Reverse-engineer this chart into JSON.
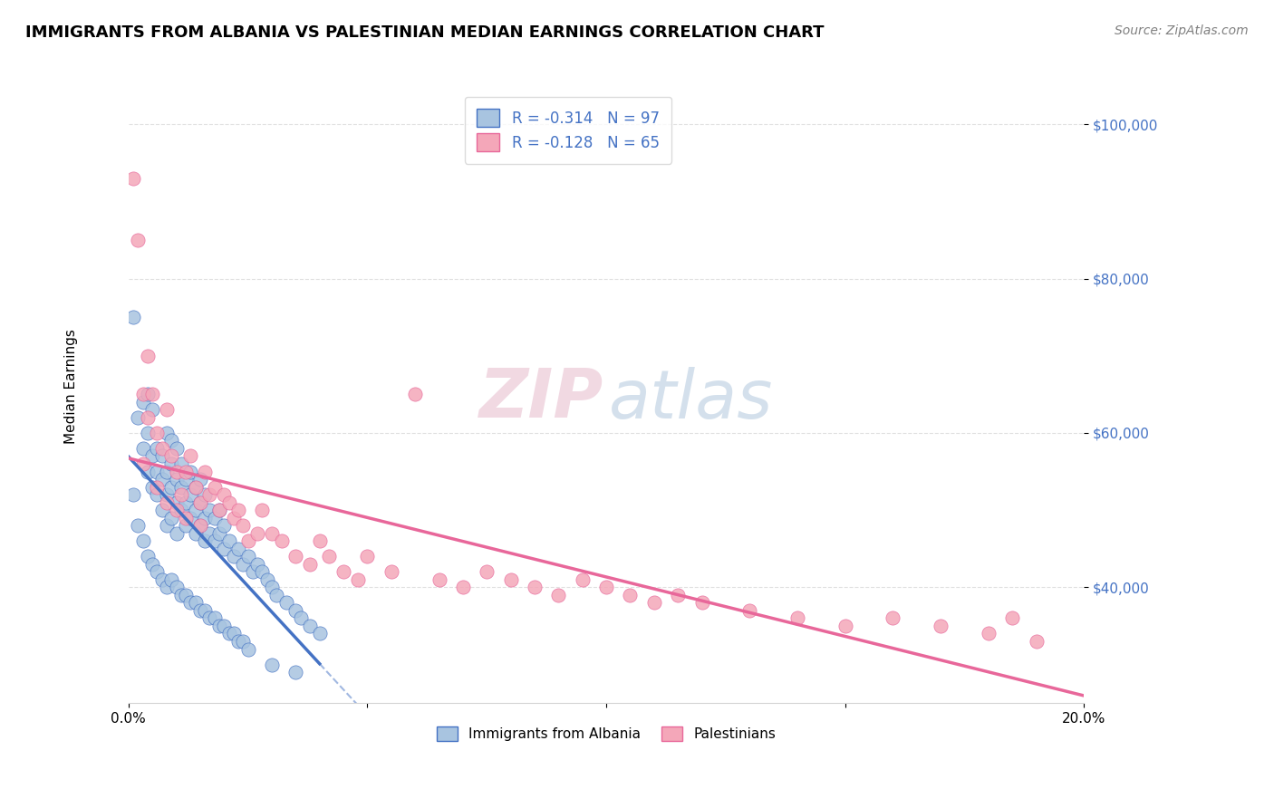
{
  "title": "IMMIGRANTS FROM ALBANIA VS PALESTINIAN MEDIAN EARNINGS CORRELATION CHART",
  "source": "Source: ZipAtlas.com",
  "ylabel": "Median Earnings",
  "y_ticks": [
    40000,
    60000,
    80000,
    100000
  ],
  "y_tick_labels": [
    "$40,000",
    "$60,000",
    "$80,000",
    "$100,000"
  ],
  "x_range": [
    0,
    0.2
  ],
  "y_range": [
    25000,
    107000
  ],
  "albania_color": "#a8c4e0",
  "albania_line_color": "#4472c4",
  "palestinian_color": "#f4a7b9",
  "palestinian_line_color": "#e8679a",
  "legend_r_albania": "-0.314",
  "legend_n_albania": "97",
  "legend_r_palestinian": "-0.128",
  "legend_n_palestinian": "65",
  "albania_x": [
    0.001,
    0.002,
    0.003,
    0.003,
    0.004,
    0.004,
    0.004,
    0.005,
    0.005,
    0.005,
    0.006,
    0.006,
    0.006,
    0.007,
    0.007,
    0.007,
    0.008,
    0.008,
    0.008,
    0.008,
    0.009,
    0.009,
    0.009,
    0.009,
    0.01,
    0.01,
    0.01,
    0.01,
    0.011,
    0.011,
    0.011,
    0.012,
    0.012,
    0.012,
    0.013,
    0.013,
    0.013,
    0.014,
    0.014,
    0.014,
    0.015,
    0.015,
    0.015,
    0.016,
    0.016,
    0.016,
    0.017,
    0.017,
    0.018,
    0.018,
    0.019,
    0.019,
    0.02,
    0.02,
    0.021,
    0.022,
    0.023,
    0.024,
    0.025,
    0.026,
    0.027,
    0.028,
    0.029,
    0.03,
    0.031,
    0.033,
    0.035,
    0.036,
    0.038,
    0.04,
    0.001,
    0.002,
    0.003,
    0.004,
    0.005,
    0.006,
    0.007,
    0.008,
    0.009,
    0.01,
    0.011,
    0.012,
    0.013,
    0.014,
    0.015,
    0.016,
    0.017,
    0.018,
    0.019,
    0.02,
    0.021,
    0.022,
    0.023,
    0.024,
    0.025,
    0.03,
    0.035
  ],
  "albania_y": [
    52000,
    62000,
    64000,
    58000,
    55000,
    60000,
    65000,
    53000,
    57000,
    63000,
    52000,
    55000,
    58000,
    50000,
    54000,
    57000,
    48000,
    52000,
    55000,
    60000,
    49000,
    53000,
    56000,
    59000,
    47000,
    51000,
    54000,
    58000,
    50000,
    53000,
    56000,
    48000,
    51000,
    54000,
    49000,
    52000,
    55000,
    47000,
    50000,
    53000,
    48000,
    51000,
    54000,
    46000,
    49000,
    52000,
    47000,
    50000,
    46000,
    49000,
    47000,
    50000,
    45000,
    48000,
    46000,
    44000,
    45000,
    43000,
    44000,
    42000,
    43000,
    42000,
    41000,
    40000,
    39000,
    38000,
    37000,
    36000,
    35000,
    34000,
    75000,
    48000,
    46000,
    44000,
    43000,
    42000,
    41000,
    40000,
    41000,
    40000,
    39000,
    39000,
    38000,
    38000,
    37000,
    37000,
    36000,
    36000,
    35000,
    35000,
    34000,
    34000,
    33000,
    33000,
    32000,
    30000,
    29000
  ],
  "palestinian_x": [
    0.001,
    0.002,
    0.003,
    0.004,
    0.004,
    0.005,
    0.006,
    0.007,
    0.008,
    0.009,
    0.01,
    0.011,
    0.012,
    0.013,
    0.014,
    0.015,
    0.016,
    0.017,
    0.018,
    0.019,
    0.02,
    0.021,
    0.022,
    0.023,
    0.024,
    0.025,
    0.027,
    0.028,
    0.03,
    0.032,
    0.035,
    0.038,
    0.04,
    0.042,
    0.045,
    0.048,
    0.05,
    0.055,
    0.06,
    0.065,
    0.07,
    0.075,
    0.08,
    0.085,
    0.09,
    0.095,
    0.1,
    0.105,
    0.11,
    0.115,
    0.12,
    0.13,
    0.14,
    0.15,
    0.16,
    0.17,
    0.18,
    0.19,
    0.003,
    0.006,
    0.008,
    0.01,
    0.012,
    0.015,
    0.185
  ],
  "palestinian_y": [
    93000,
    85000,
    65000,
    62000,
    70000,
    65000,
    60000,
    58000,
    63000,
    57000,
    55000,
    52000,
    55000,
    57000,
    53000,
    51000,
    55000,
    52000,
    53000,
    50000,
    52000,
    51000,
    49000,
    50000,
    48000,
    46000,
    47000,
    50000,
    47000,
    46000,
    44000,
    43000,
    46000,
    44000,
    42000,
    41000,
    44000,
    42000,
    65000,
    41000,
    40000,
    42000,
    41000,
    40000,
    39000,
    41000,
    40000,
    39000,
    38000,
    39000,
    38000,
    37000,
    36000,
    35000,
    36000,
    35000,
    34000,
    33000,
    56000,
    53000,
    51000,
    50000,
    49000,
    48000,
    36000
  ]
}
